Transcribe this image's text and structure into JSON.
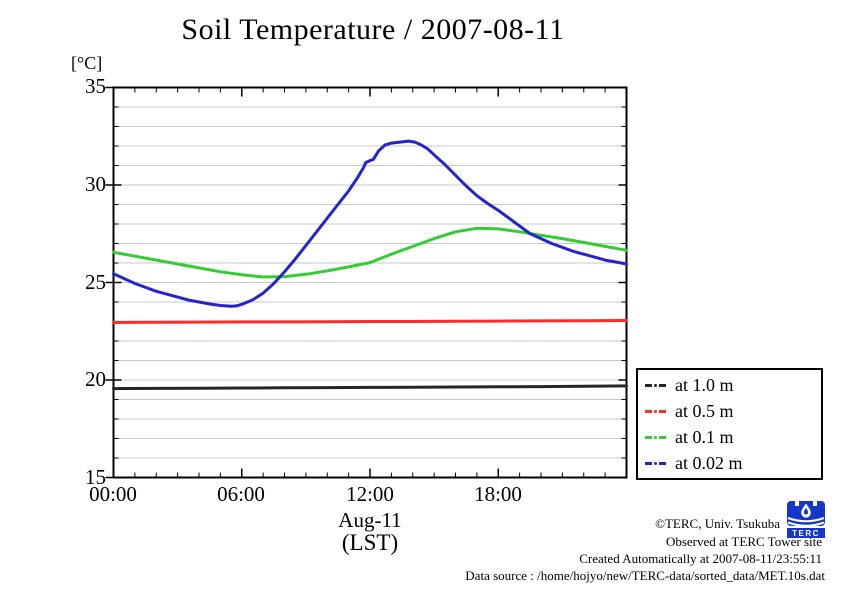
{
  "title": "Soil Temperature / 2007-08-11",
  "unit_label": "[°C]",
  "x_axis": {
    "day_label": "Aug-11",
    "tz_label": "(LST)"
  },
  "annotations": {
    "copyright": "©TERC, Univ. Tsukuba",
    "observed": "Observed at TERC Tower site",
    "created": "Created Automatically at 2007-08-11/23:55:11",
    "source": "Data source : /home/hojyo/new/TERC-data/sorted_data/MET.10s.dat"
  },
  "logo": {
    "text": "TERC",
    "color": "#1536c9"
  },
  "chart_data": {
    "type": "line",
    "title": "Soil Temperature / 2007-08-11",
    "xlabel": "Aug-11 (LST)",
    "ylabel": "[°C]",
    "xlim": [
      0,
      24
    ],
    "ylim": [
      15,
      35
    ],
    "x_major_tick_hours": [
      0,
      6,
      12,
      18,
      24
    ],
    "x_tick_labels": [
      "00:00",
      "06:00",
      "12:00",
      "18:00"
    ],
    "x_minor_tick_step_hours": 1,
    "y_major_ticks": [
      15,
      20,
      25,
      30,
      35
    ],
    "y_tick_labels": [
      "35",
      "30",
      "25",
      "20",
      "15"
    ],
    "y_minor_tick_step": 1,
    "grid": "horizontal gridlines every 1 degree C",
    "legend_position": "outside right, below plot middle",
    "series": [
      {
        "label": "at 1.0 m",
        "color": "#262626",
        "x": [
          0,
          2,
          4,
          6,
          8,
          10,
          12,
          14,
          16,
          18,
          20,
          22,
          24
        ],
        "values": [
          19.56,
          19.57,
          19.58,
          19.59,
          19.6,
          19.61,
          19.62,
          19.63,
          19.64,
          19.65,
          19.66,
          19.68,
          19.7
        ]
      },
      {
        "label": "at 0.5 m",
        "color": "#ff2a2a",
        "x": [
          0,
          2,
          4,
          6,
          8,
          10,
          12,
          14,
          16,
          18,
          20,
          22,
          24
        ],
        "values": [
          22.95,
          22.96,
          22.97,
          22.98,
          22.98,
          22.99,
          23.0,
          23.0,
          23.01,
          23.02,
          23.03,
          23.04,
          23.05
        ]
      },
      {
        "label": "at 0.1 m",
        "color": "#33cc33",
        "x": [
          0,
          1,
          2,
          3,
          4,
          5,
          6,
          7,
          8,
          9,
          10,
          11,
          12,
          13,
          14,
          15,
          16,
          17,
          18,
          19,
          20,
          21,
          22,
          23,
          24
        ],
        "values": [
          26.55,
          26.35,
          26.15,
          25.95,
          25.75,
          25.55,
          25.4,
          25.28,
          25.3,
          25.42,
          25.6,
          25.8,
          26.02,
          26.45,
          26.85,
          27.25,
          27.6,
          27.78,
          27.75,
          27.6,
          27.42,
          27.25,
          27.05,
          26.85,
          26.65
        ]
      },
      {
        "label": "at 0.02 m",
        "color": "#2424cd",
        "x": [
          0,
          0.5,
          1,
          1.5,
          2,
          2.5,
          3,
          3.5,
          4,
          4.5,
          5,
          5.25,
          5.5,
          5.75,
          6,
          6.5,
          7,
          7.5,
          8,
          8.5,
          9,
          9.5,
          10,
          10.5,
          11,
          11.4,
          11.7,
          11.8,
          12.0,
          12.15,
          12.4,
          12.7,
          13.0,
          13.4,
          13.8,
          14.1,
          14.4,
          14.7,
          15,
          15.5,
          16,
          16.5,
          17,
          17.5,
          18,
          18.5,
          19,
          19.5,
          20,
          20.5,
          21,
          21.5,
          22,
          22.5,
          23,
          23.5,
          24
        ],
        "values": [
          25.45,
          25.2,
          24.95,
          24.75,
          24.55,
          24.4,
          24.25,
          24.1,
          24.0,
          23.9,
          23.82,
          23.8,
          23.78,
          23.8,
          23.88,
          24.1,
          24.45,
          24.95,
          25.55,
          26.2,
          26.9,
          27.6,
          28.3,
          29.0,
          29.7,
          30.35,
          30.9,
          31.15,
          31.25,
          31.3,
          31.75,
          32.05,
          32.15,
          32.2,
          32.25,
          32.2,
          32.05,
          31.85,
          31.55,
          31.05,
          30.5,
          29.95,
          29.45,
          29.05,
          28.7,
          28.3,
          27.9,
          27.5,
          27.25,
          27.0,
          26.8,
          26.6,
          26.45,
          26.3,
          26.15,
          26.05,
          25.95
        ]
      }
    ]
  }
}
